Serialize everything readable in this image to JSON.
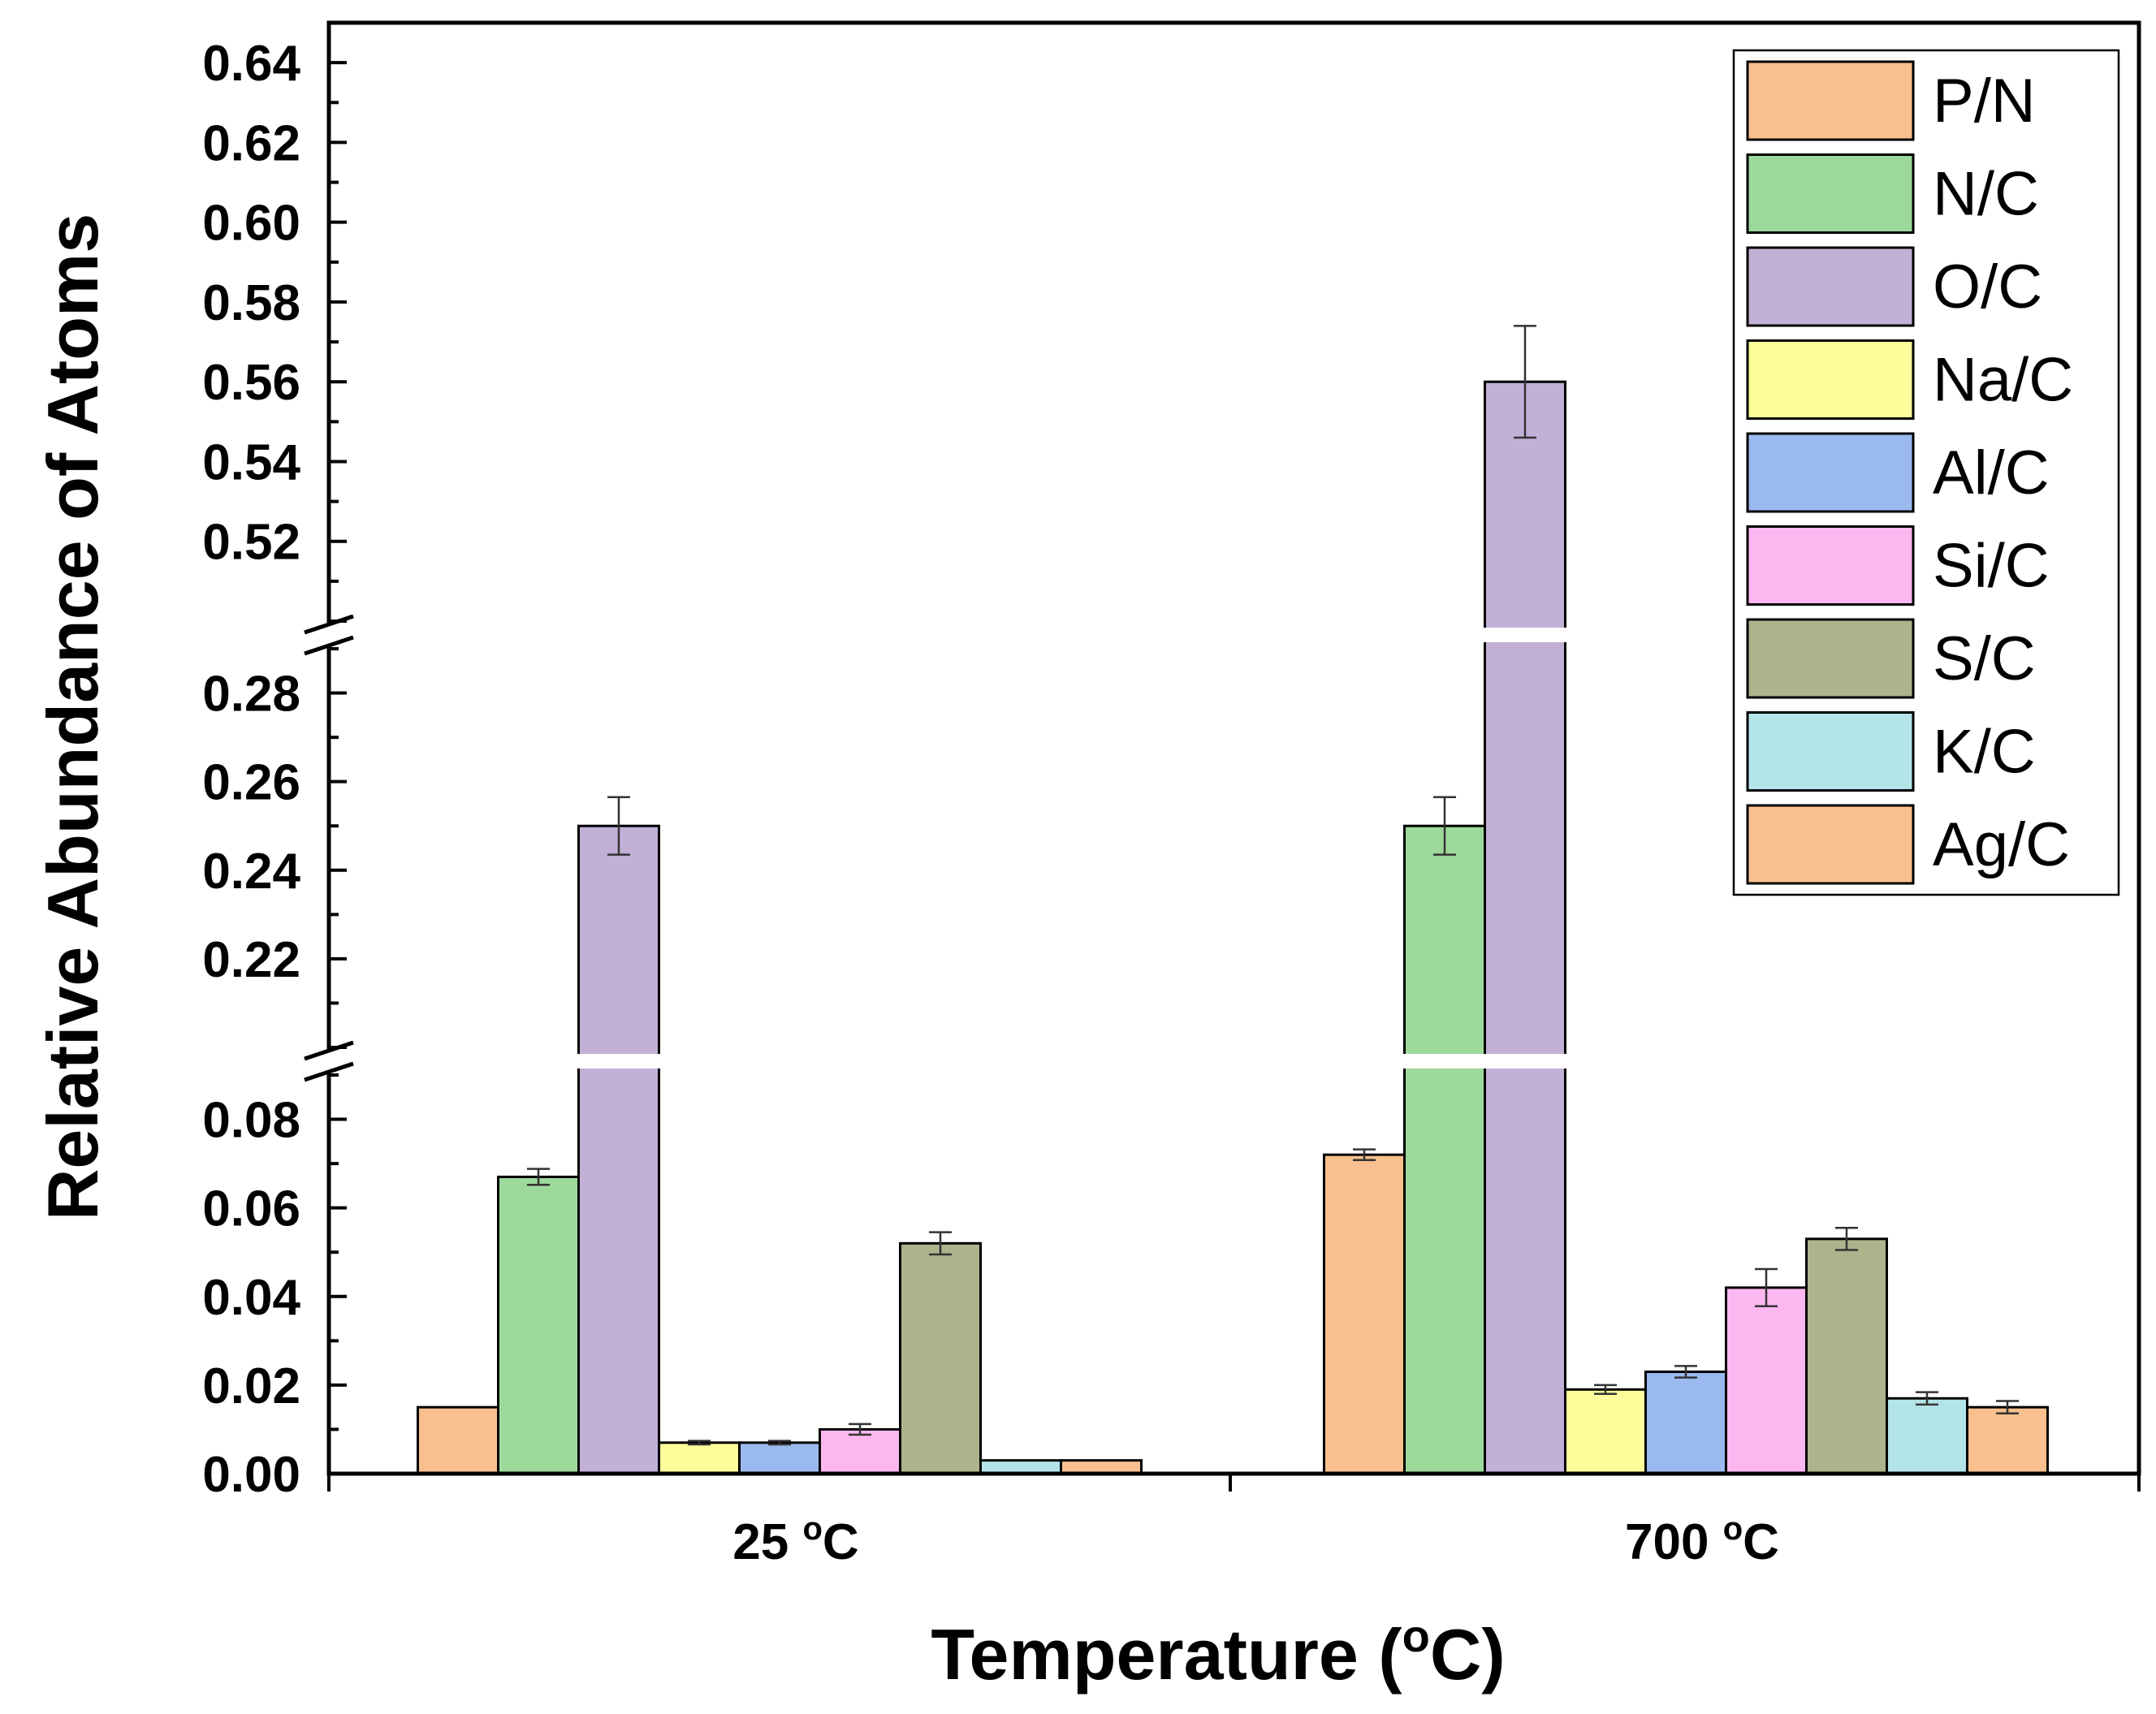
{
  "chart_data": {
    "type": "bar",
    "title": "",
    "xlabel": "Temperature (",
    "xlabel_unit": "C)",
    "xlabel_sup": "o",
    "ylabel": "Relative Abundance of Atoms",
    "categories": [
      "25 ",
      "700 "
    ],
    "category_sup": "o",
    "category_unit": "C",
    "axis_breaks": [
      {
        "from": 0.09,
        "to": 0.2
      },
      {
        "from": 0.29,
        "to": 0.5
      }
    ],
    "y_segments": [
      {
        "range": [
          0,
          0.09
        ],
        "ticks": [
          "0.00",
          "0.02",
          "0.04",
          "0.06",
          "0.08"
        ]
      },
      {
        "range": [
          0.2,
          0.29
        ],
        "ticks": [
          "0.22",
          "0.24",
          "0.26",
          "0.28"
        ]
      },
      {
        "range": [
          0.5,
          0.65
        ],
        "ticks": [
          "0.52",
          "0.54",
          "0.56",
          "0.58",
          "0.60",
          "0.62",
          "0.64"
        ]
      }
    ],
    "legend_position": "top-right",
    "series": [
      {
        "name": "P/N",
        "color": "#f9c08f",
        "values": [
          0.015,
          0.072
        ],
        "errors": [
          0.0,
          0.0012
        ]
      },
      {
        "name": "N/C",
        "color": "#9dd99b",
        "values": [
          0.067,
          0.25
        ],
        "errors": [
          0.0018,
          0.0065
        ]
      },
      {
        "name": "O/C",
        "color": "#c2b0d6",
        "values": [
          0.25,
          0.56
        ],
        "errors": [
          0.0065,
          0.014
        ]
      },
      {
        "name": "Na/C",
        "color": "#fdfd9b",
        "values": [
          0.007,
          0.019
        ],
        "errors": [
          0.0004,
          0.001
        ]
      },
      {
        "name": "Al/C",
        "color": "#9ab9ee",
        "values": [
          0.007,
          0.023
        ],
        "errors": [
          0.0004,
          0.0013
        ]
      },
      {
        "name": "Si/C",
        "color": "#fdb7f0",
        "values": [
          0.01,
          0.042
        ],
        "errors": [
          0.0012,
          0.0042
        ]
      },
      {
        "name": "S/C",
        "color": "#afb38b",
        "values": [
          0.052,
          0.053
        ],
        "errors": [
          0.0025,
          0.0025
        ]
      },
      {
        "name": "K/C",
        "color": "#b3e4e8",
        "values": [
          0.003,
          0.017
        ],
        "errors": [
          0.0,
          0.0014
        ]
      },
      {
        "name": "Ag/C",
        "color": "#f9c08f",
        "values": [
          0.003,
          0.015
        ],
        "errors": [
          0.0,
          0.0014
        ]
      }
    ]
  }
}
